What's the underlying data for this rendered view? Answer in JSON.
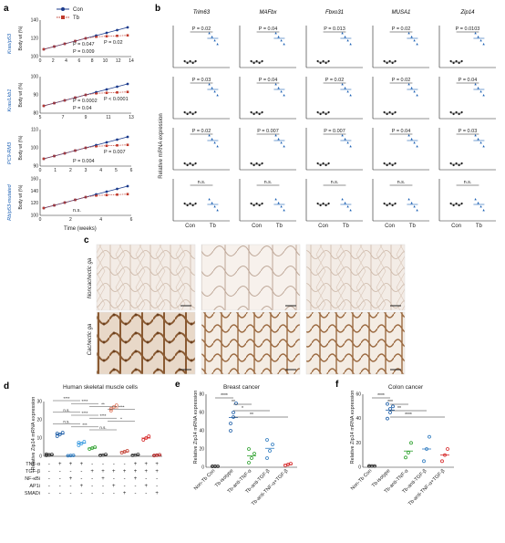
{
  "panel_labels": {
    "a": "a",
    "b": "b",
    "c": "c",
    "d": "d",
    "e": "e",
    "f": "f"
  },
  "panel_a": {
    "legend": {
      "con": "Con",
      "tb": "Tb"
    },
    "ylabel": "Body wt (%)",
    "xlabel": "Time (weeks)",
    "rows": [
      {
        "model": "Kras/p53",
        "yticks": [
          "100",
          "120",
          "140"
        ],
        "xticks": [
          "0",
          "2",
          "4",
          "6",
          "8",
          "10",
          "12",
          "14"
        ],
        "pvals": [
          "P = 0.009",
          "P = 0.02",
          "P = 0.047"
        ]
      },
      {
        "model": "Kras/Lkb1",
        "yticks": [
          "80",
          "90",
          "100"
        ],
        "xticks": [
          "5",
          "7",
          "9",
          "11",
          "13"
        ],
        "pvals": [
          "P = 0.04",
          "P < 0.0001",
          "P = 0.0002"
        ]
      },
      {
        "model": "PC9-RM3",
        "yticks": [
          "90",
          "100",
          "110"
        ],
        "xticks": [
          "0",
          "1",
          "2",
          "3",
          "4",
          "5",
          "6"
        ],
        "pvals": [
          "P = 0.004",
          "P = 0.007"
        ]
      },
      {
        "model": "Rb/p53-mutated",
        "yticks": [
          "100",
          "120",
          "140",
          "160"
        ],
        "xticks": [
          "0",
          "2",
          "4",
          "6"
        ],
        "pvals": [
          "n.s."
        ]
      }
    ]
  },
  "panel_b": {
    "ylabel": "Relative mRNA expression",
    "genes": [
      "Trim63",
      "MAFbx",
      "Fbxo31",
      "MUSA1",
      "Zip14"
    ],
    "xcats": [
      "Con",
      "Tb"
    ],
    "pvals": [
      [
        "P = 0.02",
        "P = 0.04",
        "P = 0.013",
        "P = 0.02",
        "P = 0.0103"
      ],
      [
        "P = 0.03",
        "P = 0.04",
        "P = 0.02",
        "P = 0.02",
        "P = 0.04"
      ],
      [
        "P = 0.02",
        "P = 0.007",
        "P = 0.007",
        "P = 0.04",
        "P = 0.03"
      ],
      [
        "n.s.",
        "n.s.",
        "n.s.",
        "n.s.",
        "n.s."
      ]
    ]
  },
  "panel_c": {
    "rows": [
      "Noncachectic ga",
      "Cachectic ga"
    ]
  },
  "panel_d": {
    "title": "Human skeletal muscle cells",
    "ylabel": "Relative Zip14 mRNA expression",
    "yticks": [
      "0",
      "10",
      "20",
      "30"
    ],
    "sig": [
      "****",
      "****",
      "**",
      "****",
      "n.s.",
      "****",
      "****",
      "*",
      "n.s.",
      "***",
      "n.s."
    ],
    "rowlabels": [
      "TNF-α",
      "TGF-β",
      "NF-κBi",
      "AP1i",
      "SMADi"
    ],
    "signs": [
      [
        "-",
        "+",
        "+",
        "+",
        "-",
        "-",
        "-",
        "-",
        "+",
        "+",
        "+"
      ],
      [
        "-",
        "-",
        "-",
        "-",
        "+",
        "+",
        "+",
        "+",
        "+",
        "+",
        "+"
      ],
      [
        "-",
        "-",
        "+",
        "-",
        "-",
        "+",
        "-",
        "-",
        "+",
        "-",
        "-"
      ],
      [
        "-",
        "-",
        "-",
        "+",
        "-",
        "-",
        "+",
        "-",
        "-",
        "+",
        "-"
      ],
      [
        "-",
        "-",
        "-",
        "-",
        "-",
        "-",
        "-",
        "+",
        "-",
        "-",
        "+"
      ]
    ],
    "chart_data": {
      "type": "scatter",
      "ylabel": "Relative Zip14 mRNA expression",
      "ylim": [
        0,
        30
      ],
      "groups": [
        {
          "color": "#333333",
          "values": [
            0.5,
            0.8,
            1,
            1.2,
            0.7
          ]
        },
        {
          "color": "#1f5fa8",
          "values": [
            11,
            12,
            13,
            12.5
          ]
        },
        {
          "color": "#2e7bc0",
          "values": [
            0.3,
            0.4,
            0.5
          ]
        },
        {
          "color": "#3a9be0",
          "values": [
            6,
            7,
            8,
            7.5
          ]
        },
        {
          "color": "#2ca02c",
          "values": [
            4,
            4.5,
            5
          ]
        },
        {
          "color": "#333333",
          "values": [
            0.5,
            0.7,
            1
          ]
        },
        {
          "color": "#e07a5f",
          "values": [
            26,
            27,
            28,
            25
          ]
        },
        {
          "color": "#c0392b",
          "values": [
            2,
            2.5,
            3
          ]
        },
        {
          "color": "#333333",
          "values": [
            0.5,
            0.7,
            1
          ]
        },
        {
          "color": "#d62728",
          "values": [
            9,
            10,
            11
          ]
        },
        {
          "color": "#b22222",
          "values": [
            0.4,
            0.6,
            0.8
          ]
        }
      ]
    }
  },
  "panel_e": {
    "title": "Breast cancer",
    "ylabel": "Relative Zip14 mRNA expression",
    "yticks": [
      "0",
      "20",
      "40",
      "60",
      "80"
    ],
    "sig": [
      "****",
      "**",
      "*",
      "**"
    ],
    "xcats": [
      "Non-Tb Con",
      "Tb-isotype",
      "Tb-anti-TNF-α",
      "Tb-anti-TGF-β",
      "Tb-anti-TNF-α+TGF-β"
    ],
    "chart_data": {
      "type": "scatter",
      "categories": [
        "Non-Tb Con",
        "Tb-isotype",
        "Tb-anti-TNF-α",
        "Tb-anti-TGF-β",
        "Tb-anti-TNF-α+TGF-β"
      ],
      "ylim": [
        0,
        80
      ],
      "groups": [
        {
          "color": "#333333",
          "values": [
            1,
            1,
            1,
            1,
            1
          ]
        },
        {
          "color": "#1f5fa8",
          "values": [
            40,
            55,
            70,
            48,
            60
          ]
        },
        {
          "color": "#2ca02c",
          "values": [
            5,
            10,
            15,
            20
          ]
        },
        {
          "color": "#2e7bc0",
          "values": [
            10,
            18,
            25,
            30
          ]
        },
        {
          "color": "#d62728",
          "values": [
            2,
            3,
            4
          ]
        }
      ]
    }
  },
  "panel_f": {
    "title": "Colon cancer",
    "ylabel": "Relative Zip14 mRNA expression",
    "yticks": [
      "0",
      "20",
      "40",
      "60"
    ],
    "sig": [
      "****",
      "***",
      "**",
      "****"
    ],
    "xcats": [
      "Non-Tb Con",
      "Tb-isotype",
      "Tb-anti-TNF-α",
      "Tb-anti-TGF-β",
      "Tb-anti-TNF-α+TGF-β"
    ],
    "chart_data": {
      "type": "scatter",
      "categories": [
        "Non-Tb Con",
        "Tb-isotype",
        "Tb-anti-TNF-α",
        "Tb-anti-TGF-β",
        "Tb-anti-TNF-α+TGF-β"
      ],
      "ylim": [
        0,
        60
      ],
      "groups": [
        {
          "color": "#333333",
          "values": [
            1,
            1,
            1,
            1
          ]
        },
        {
          "color": "#1f5fa8",
          "values": [
            40,
            45,
            50,
            52,
            48
          ]
        },
        {
          "color": "#2ca02c",
          "values": [
            8,
            12,
            20
          ]
        },
        {
          "color": "#2e7bc0",
          "values": [
            5,
            15,
            25
          ]
        },
        {
          "color": "#d62728",
          "values": [
            5,
            10,
            15
          ]
        }
      ]
    }
  }
}
